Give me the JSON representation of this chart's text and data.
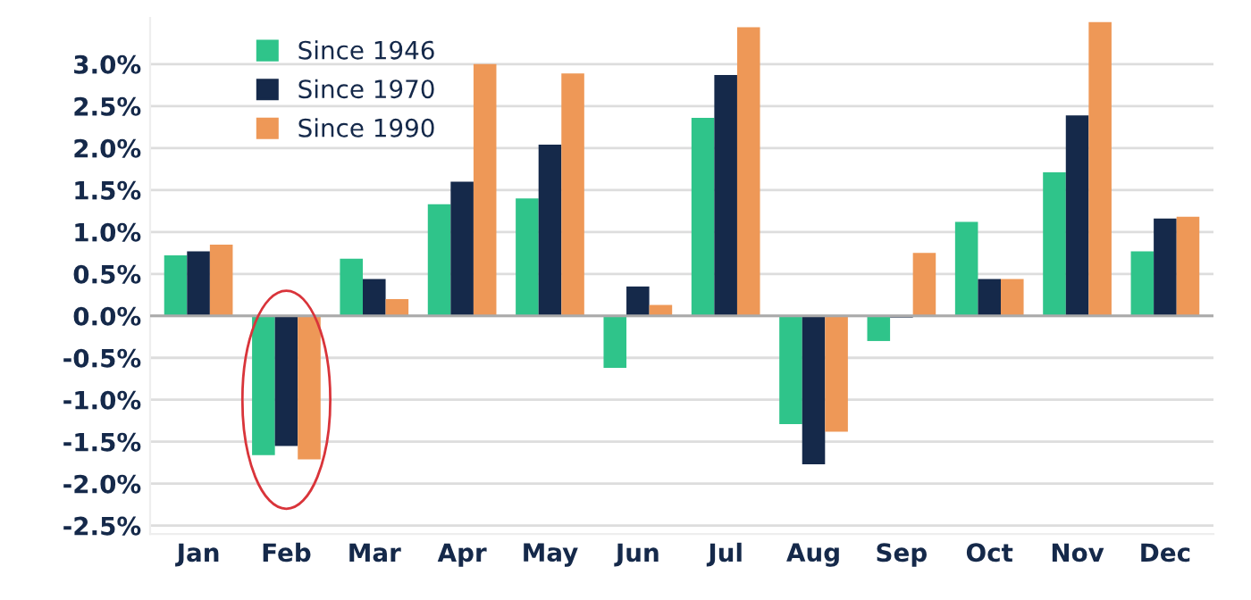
{
  "chart_data": {
    "type": "bar",
    "categories": [
      "Jan",
      "Feb",
      "Mar",
      "Apr",
      "May",
      "Jun",
      "Jul",
      "Aug",
      "Sep",
      "Oct",
      "Nov",
      "Dec"
    ],
    "series": [
      {
        "name": "Since 1946",
        "color": "#2fc48a",
        "values": [
          0.72,
          -1.66,
          0.68,
          1.33,
          1.4,
          -0.62,
          2.36,
          -1.29,
          -0.3,
          1.12,
          1.71,
          0.77
        ]
      },
      {
        "name": "Since 1970",
        "color": "#15294a",
        "values": [
          0.77,
          -1.55,
          0.44,
          1.6,
          2.04,
          0.35,
          2.87,
          -1.77,
          -0.02,
          0.44,
          2.39,
          1.16
        ]
      },
      {
        "name": "Since 1990",
        "color": "#ee9857",
        "values": [
          0.85,
          -1.71,
          0.2,
          3.0,
          2.89,
          0.13,
          3.44,
          -1.38,
          0.75,
          0.44,
          3.5,
          1.18
        ]
      }
    ],
    "ylim": [
      -2.6,
      3.55
    ],
    "yticks": [
      {
        "value": -2.5,
        "label": "-2.5%"
      },
      {
        "value": -2.0,
        "label": "-2.0%"
      },
      {
        "value": -1.5,
        "label": "-1.5%"
      },
      {
        "value": -1.0,
        "label": "-1.0%"
      },
      {
        "value": -0.5,
        "label": "-0.5%"
      },
      {
        "value": 0.0,
        "label": "0.0%"
      },
      {
        "value": 0.5,
        "label": "0.5%"
      },
      {
        "value": 1.0,
        "label": "1.0%"
      },
      {
        "value": 1.5,
        "label": "1.5%"
      },
      {
        "value": 2.0,
        "label": "2.0%"
      },
      {
        "value": 2.5,
        "label": "2.5%"
      },
      {
        "value": 3.0,
        "label": "3.0%"
      }
    ],
    "grid": "y",
    "legend": "top left"
  }
}
